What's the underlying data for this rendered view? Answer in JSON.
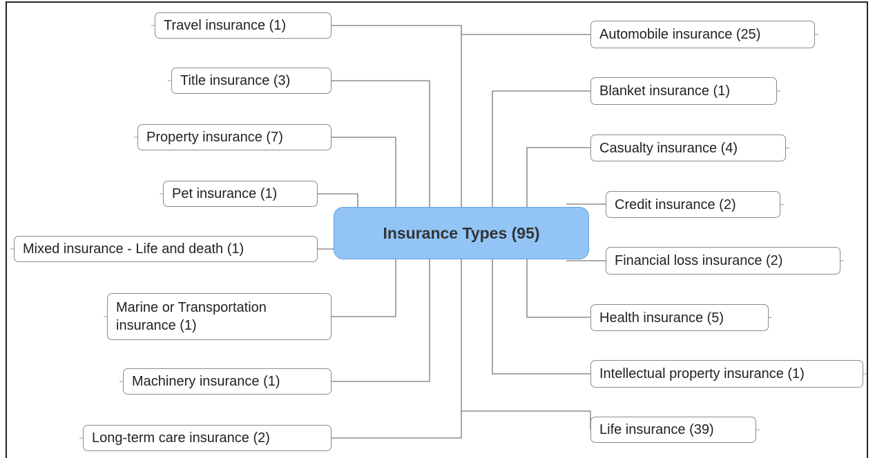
{
  "center": {
    "label": "Insurance Types (95)"
  },
  "left_nodes": [
    {
      "label": "Travel insurance (1)"
    },
    {
      "label": "Title insurance (3)"
    },
    {
      "label": "Property insurance (7)"
    },
    {
      "label": "Pet insurance (1)"
    },
    {
      "label": "Mixed insurance - Life and death (1)"
    },
    {
      "label": "Marine or Transportation insurance (1)"
    },
    {
      "label": "Machinery insurance (1)"
    },
    {
      "label": "Long-term care insurance (2)"
    }
  ],
  "right_nodes": [
    {
      "label": "Automobile insurance (25)"
    },
    {
      "label": "Blanket insurance (1)"
    },
    {
      "label": "Casualty insurance (4)"
    },
    {
      "label": "Credit insurance (2)"
    },
    {
      "label": "Financial loss insurance (2)"
    },
    {
      "label": "Health insurance (5)"
    },
    {
      "label": "Intellectual property insurance (1)"
    },
    {
      "label": "Life insurance (39)"
    }
  ]
}
